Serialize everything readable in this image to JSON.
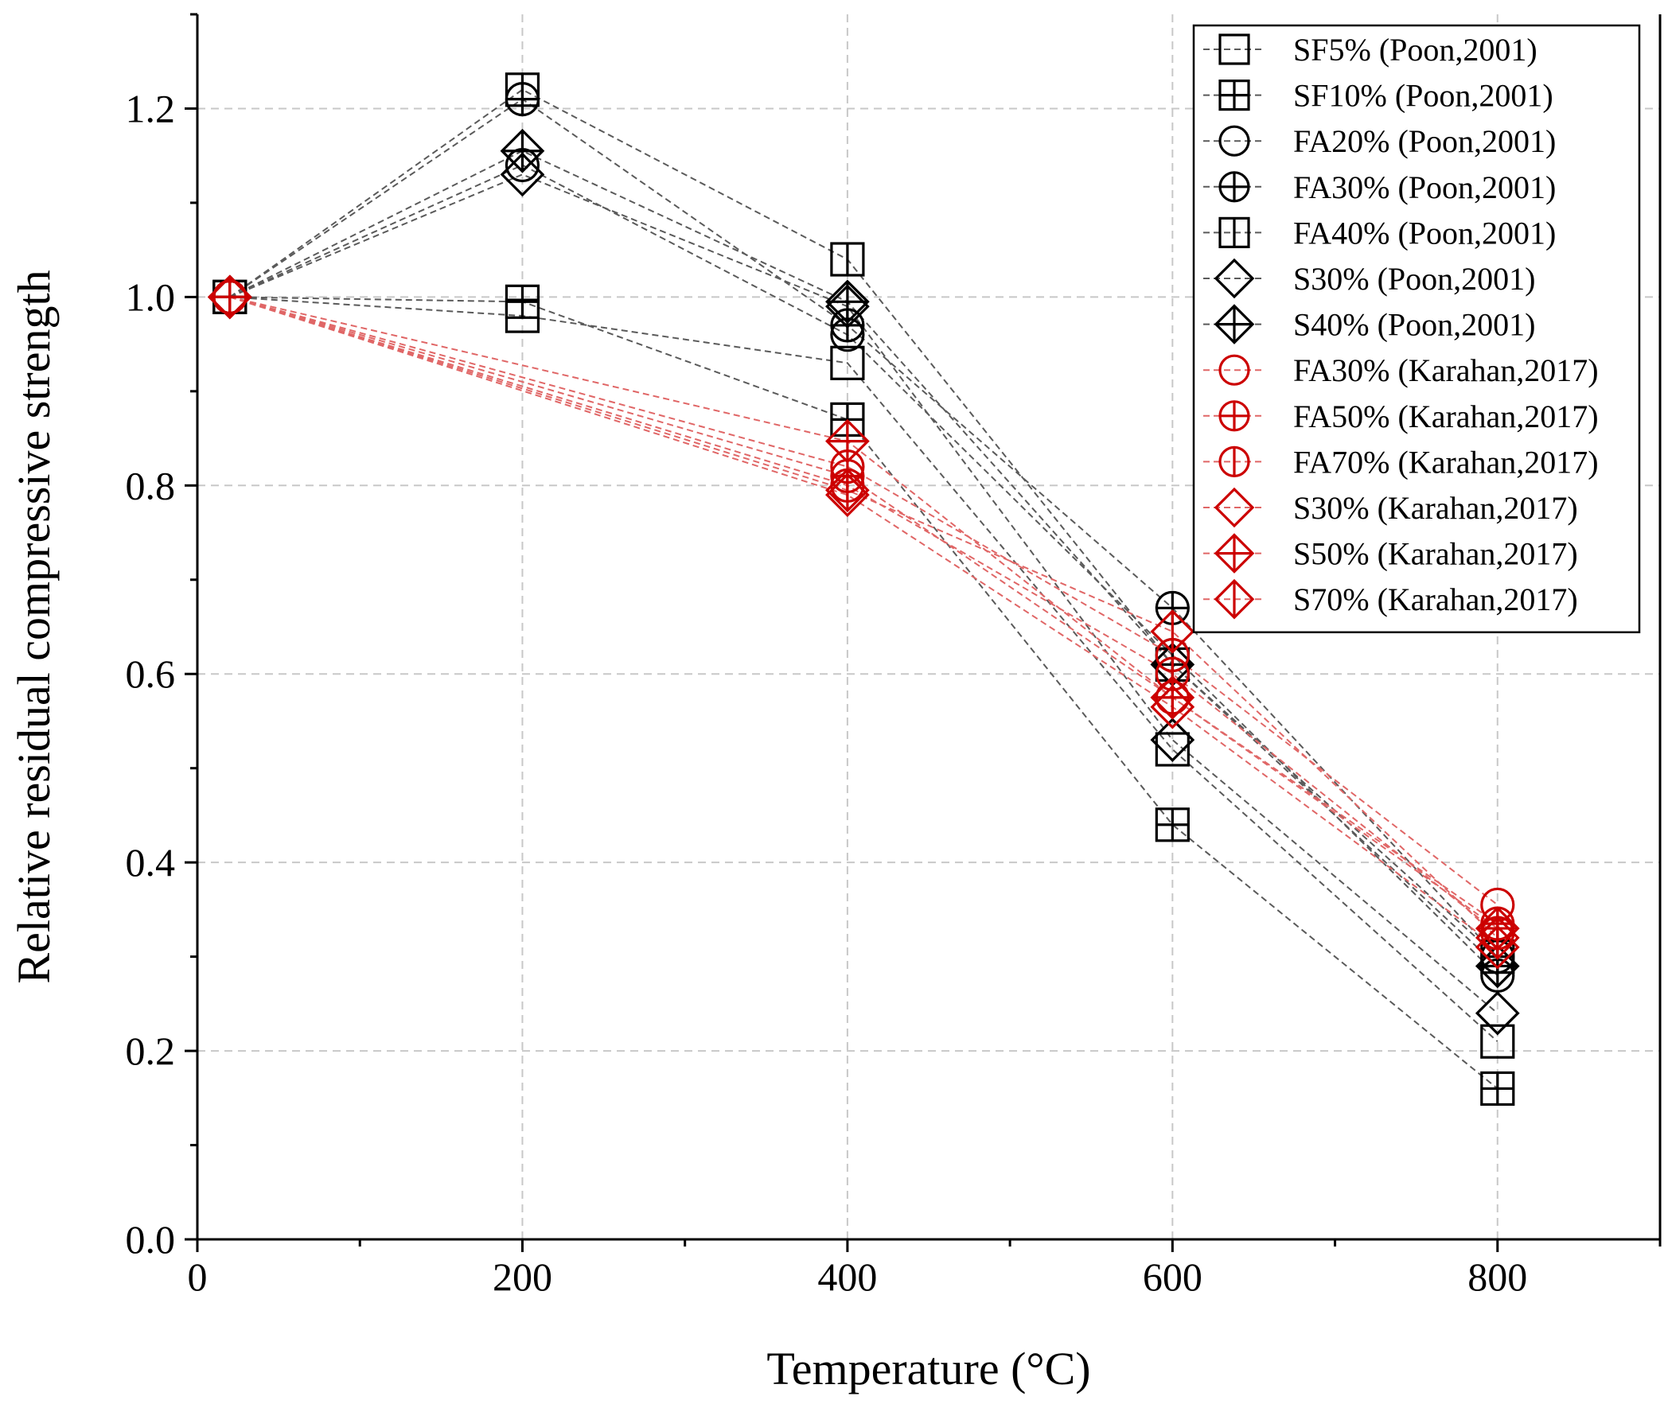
{
  "chart_data": {
    "type": "scatter",
    "title": "",
    "xlabel": "Temperature (°C)",
    "ylabel": "Relative residual compressive strength",
    "xlim": [
      0,
      900
    ],
    "ylim": [
      0,
      1.3
    ],
    "x_ticks": [
      "0",
      "200",
      "400",
      "600",
      "800"
    ],
    "x_tick_values": [
      0,
      200,
      400,
      600,
      800
    ],
    "y_ticks": [
      "0.0",
      "0.2",
      "0.4",
      "0.6",
      "0.8",
      "1.0",
      "1.2"
    ],
    "y_tick_values": [
      0,
      0.2,
      0.4,
      0.6,
      0.8,
      1.0,
      1.2
    ],
    "grid": true,
    "legend_position": "top-right",
    "series": [
      {
        "name": "SF5% (Poon,2001)",
        "marker": "square",
        "color": "#000000",
        "x": [
          20,
          200,
          400,
          600,
          800
        ],
        "y": [
          1.0,
          0.98,
          0.93,
          0.52,
          0.21
        ]
      },
      {
        "name": "SF10% (Poon,2001)",
        "marker": "square-cross",
        "color": "#000000",
        "x": [
          20,
          200,
          400,
          600,
          800
        ],
        "y": [
          1.0,
          0.995,
          0.87,
          0.44,
          0.16
        ]
      },
      {
        "name": "FA20% (Poon,2001)",
        "marker": "circle",
        "color": "#000000",
        "x": [
          20,
          200,
          400,
          600,
          800
        ],
        "y": [
          1.0,
          1.14,
          0.96,
          0.62,
          0.28
        ]
      },
      {
        "name": "FA30% (Poon,2001)",
        "marker": "circle-cross",
        "color": "#000000",
        "x": [
          20,
          200,
          400,
          600,
          800
        ],
        "y": [
          1.0,
          1.21,
          0.97,
          0.67,
          0.3
        ]
      },
      {
        "name": "FA40% (Poon,2001)",
        "marker": "square-vline",
        "color": "#000000",
        "x": [
          20,
          200,
          400,
          600,
          800
        ],
        "y": [
          1.0,
          1.22,
          1.04,
          0.61,
          0.3
        ]
      },
      {
        "name": "S30% (Poon,2001)",
        "marker": "diamond",
        "color": "#000000",
        "x": [
          20,
          200,
          400,
          600,
          800
        ],
        "y": [
          1.0,
          1.13,
          0.99,
          0.53,
          0.24
        ]
      },
      {
        "name": "S40% (Poon,2001)",
        "marker": "diamond-cross",
        "color": "#000000",
        "x": [
          20,
          200,
          400,
          600,
          800
        ],
        "y": [
          1.0,
          1.155,
          0.995,
          0.61,
          0.29
        ]
      },
      {
        "name": "FA30% (Karahan,2017)",
        "marker": "circle",
        "color": "#cc0000",
        "x": [
          20,
          400,
          600,
          800
        ],
        "y": [
          1.0,
          0.82,
          0.62,
          0.355
        ]
      },
      {
        "name": "FA50% (Karahan,2017)",
        "marker": "circle-cross",
        "color": "#cc0000",
        "x": [
          20,
          400,
          600,
          800
        ],
        "y": [
          1.0,
          0.81,
          0.575,
          0.335
        ]
      },
      {
        "name": "FA70% (Karahan,2017)",
        "marker": "circle-vline",
        "color": "#cc0000",
        "x": [
          20,
          400,
          600,
          800
        ],
        "y": [
          1.0,
          0.8,
          0.6,
          0.325
        ]
      },
      {
        "name": "S30%  (Karahan,2017)",
        "marker": "diamond",
        "color": "#cc0000",
        "x": [
          20,
          400,
          600,
          800
        ],
        "y": [
          1.0,
          0.79,
          0.565,
          0.31
        ]
      },
      {
        "name": "S50%  (Karahan,2017)",
        "marker": "diamond-cross",
        "color": "#cc0000",
        "x": [
          20,
          400,
          600,
          800
        ],
        "y": [
          1.0,
          0.847,
          0.575,
          0.33
        ]
      },
      {
        "name": "S70% (Karahan,2017)",
        "marker": "diamond-vline",
        "color": "#cc0000",
        "x": [
          20,
          400,
          600,
          800
        ],
        "y": [
          1.0,
          0.795,
          0.645,
          0.32
        ]
      }
    ]
  }
}
